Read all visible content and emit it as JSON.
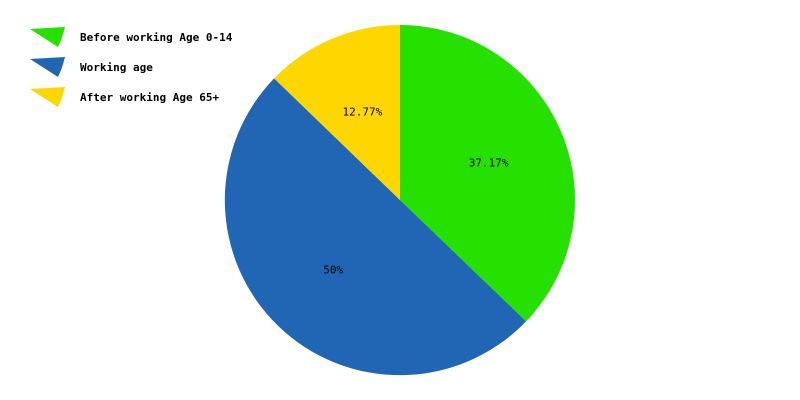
{
  "chart_data": {
    "type": "pie",
    "title": "",
    "legend_position": "top-left",
    "series": [
      {
        "name": "Before working Age 0-14",
        "value": 37.17,
        "label": "37.17%",
        "color": "#26e100"
      },
      {
        "name": "Working age",
        "value": 50,
        "label": "50%",
        "color": "#2066b4"
      },
      {
        "name": "After working Age 65+",
        "value": 12.77,
        "label": "12.77%",
        "color": "#ffd700"
      }
    ]
  }
}
